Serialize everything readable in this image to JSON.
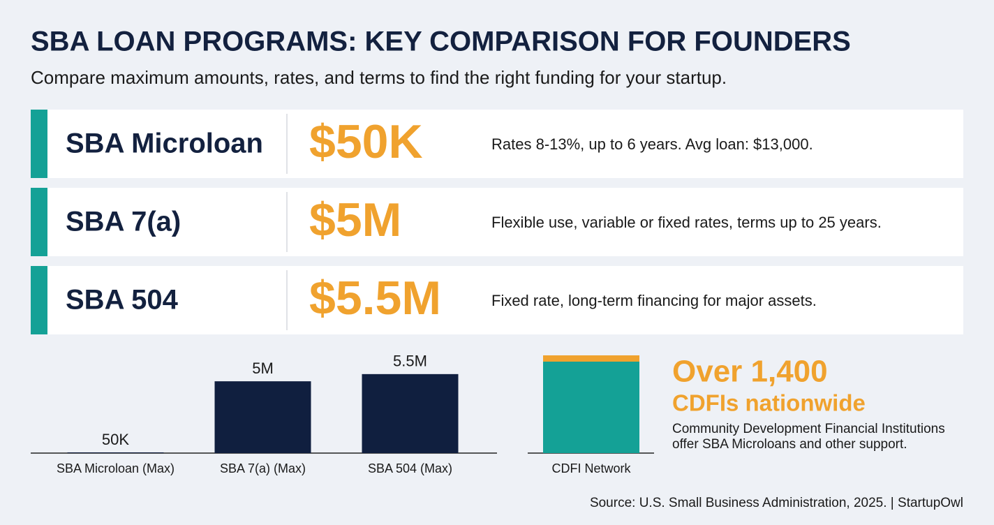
{
  "header": {
    "title": "SBA LOAN PROGRAMS: KEY COMPARISON FOR FOUNDERS",
    "subtitle": "Compare maximum amounts, rates, and terms to find the right funding for your startup."
  },
  "cards": [
    {
      "name": "SBA Microloan",
      "amount": "$50K",
      "description": "Rates 8-13%, up to 6 years. Avg loan: $13,000."
    },
    {
      "name": "SBA 7(a)",
      "amount": "$5M",
      "description": "Flexible use, variable or fixed rates, terms up to 25 years."
    },
    {
      "name": "SBA 504",
      "amount": "$5.5M",
      "description": "Fixed rate, long-term financing for major assets."
    }
  ],
  "chart_data": {
    "type": "bar",
    "categories": [
      "SBA Microloan (Max)",
      "SBA 7(a) (Max)",
      "SBA 504 (Max)"
    ],
    "values": [
      50000,
      5000000,
      5500000
    ],
    "value_labels": [
      "50K",
      "5M",
      "5.5M"
    ],
    "color": "#101f3f",
    "ylim": [
      0,
      7000000
    ]
  },
  "cdfi": {
    "bar_label": "CDFI Network",
    "headline": "Over 1,400",
    "subheadline": "CDFIs nationwide",
    "description": [
      "Community Development Financial Institutions",
      "offer SBA Microloans and other support."
    ]
  },
  "source": "Source: U.S. Small Business Administration, 2025. | StartupOwl"
}
